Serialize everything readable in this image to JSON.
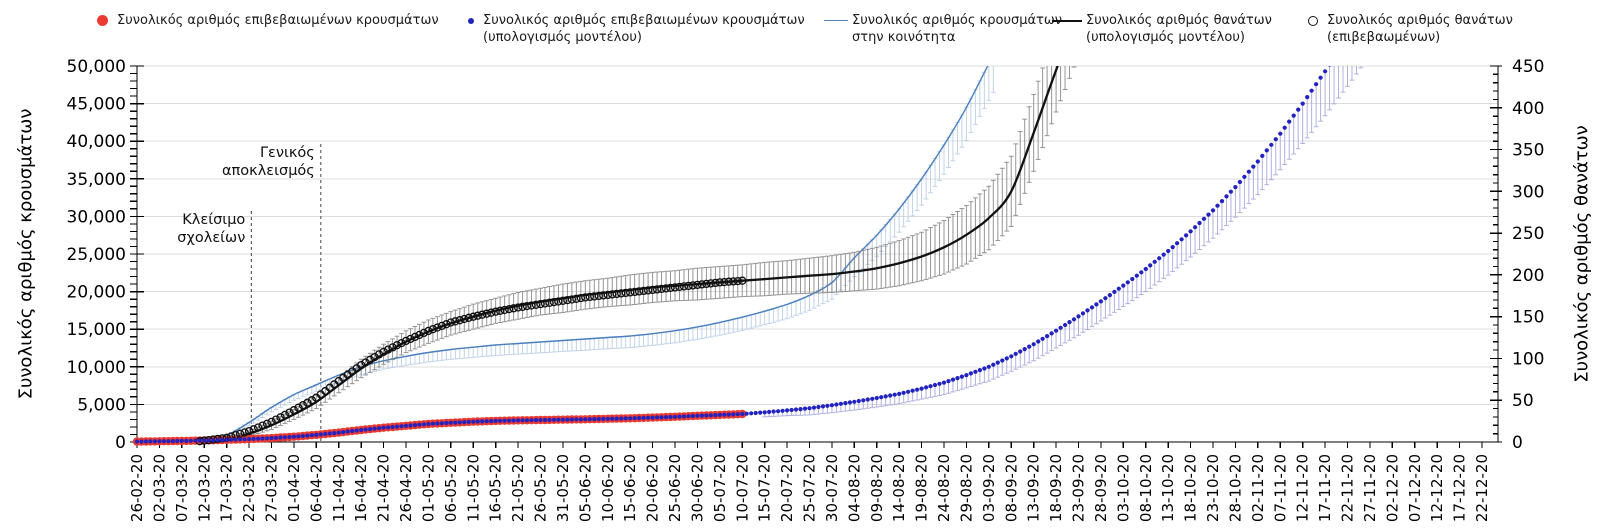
{
  "legend": {
    "items": [
      {
        "marker": "red-dot",
        "color": "#ea3b32",
        "lines": [
          "Συνολικός αριθμός επιβεβαιωμένων κρουσμάτων"
        ]
      },
      {
        "marker": "blue-dot",
        "color": "#2222c0",
        "lines": [
          "Συνολικός αριθμός επιβεβαιωμένων κρουσμάτων",
          "(υπολογισμός μοντέλου)"
        ]
      },
      {
        "marker": "blue-line",
        "color": "#4a7ebd",
        "lines": [
          "Συνολικός αριθμός κρουσμάτων",
          "στην κοινότητα"
        ]
      },
      {
        "marker": "black-line",
        "color": "#111111",
        "lines": [
          "Συνολικός αριθμός θανάτων",
          "(υπολογισμός μοντέλου)"
        ]
      },
      {
        "marker": "open-circle",
        "color": "#111111",
        "lines": [
          "Συνολικός αριθμός θανάτων",
          "(επιβεβαωμένων)"
        ]
      }
    ]
  },
  "chart_data": {
    "type": "mixed",
    "grid": "horizontal",
    "grid_color": "#dcdcdc",
    "background": "#ffffff",
    "left_axis": {
      "title": "Συνολικός αριθμός κρουσμάτων",
      "min": 0,
      "max": 50000,
      "major_step": 5000,
      "minor_step": 1000,
      "tick_labels": [
        "0",
        "5,000",
        "10,000",
        "15,000",
        "20,000",
        "25,000",
        "30,000",
        "35,000",
        "40,000",
        "45,000",
        "50,000"
      ]
    },
    "right_axis": {
      "title": "Συνολικός αριθμός θανάτων",
      "min": 0,
      "max": 450,
      "major_step": 50,
      "minor_step": 10,
      "tick_labels": [
        "0",
        "50",
        "100",
        "150",
        "200",
        "250",
        "300",
        "350",
        "400",
        "450"
      ]
    },
    "x_axis": {
      "step_days": 5,
      "tick_labels": [
        "26-02-20",
        "02-03-20",
        "07-03-20",
        "12-03-20",
        "17-03-20",
        "22-03-20",
        "27-03-20",
        "01-04-20",
        "06-04-20",
        "11-04-20",
        "16-04-20",
        "21-04-20",
        "26-04-20",
        "01-05-20",
        "06-05-20",
        "11-05-20",
        "16-05-20",
        "21-05-20",
        "26-05-20",
        "31-05-20",
        "05-06-20",
        "10-06-20",
        "15-06-20",
        "20-06-20",
        "25-06-20",
        "30-06-20",
        "05-07-20",
        "10-07-20",
        "15-07-20",
        "20-07-20",
        "25-07-20",
        "30-07-20",
        "04-08-20",
        "09-08-20",
        "14-08-20",
        "19-08-20",
        "24-08-20",
        "29-08-20",
        "03-09-20",
        "08-09-20",
        "13-09-20",
        "18-09-20",
        "23-09-20",
        "28-09-20",
        "03-10-20",
        "08-10-20",
        "13-10-20",
        "18-10-20",
        "23-10-20",
        "28-10-20",
        "02-11-20",
        "07-11-20",
        "12-11-20",
        "17-11-20",
        "22-11-20",
        "27-11-20",
        "02-12-20",
        "07-12-20",
        "12-12-20",
        "17-12-20",
        "22-12-20"
      ]
    },
    "annotations": [
      {
        "label_lines": [
          "Κλείσιμο",
          "σχολείων"
        ],
        "day": 25.5,
        "line_top_y": 211
      },
      {
        "label_lines": [
          "Γενικός",
          "αποκλεισμός"
        ],
        "day": 41,
        "line_top_y": 144
      }
    ],
    "series": [
      {
        "id": "cases_community",
        "name": "Συνολικός αριθμός κρουσμάτων στην κοινότητα",
        "type": "line",
        "axis": "left",
        "color": "#4a7ebd",
        "line_width": 1.4,
        "err_color": "#b6cbe5",
        "err_direction": "down",
        "points": [
          [
            0,
            0,
            0
          ],
          [
            5,
            30,
            0
          ],
          [
            10,
            80,
            100
          ],
          [
            15,
            250,
            200
          ],
          [
            20,
            900,
            300
          ],
          [
            25,
            2600,
            450
          ],
          [
            30,
            4600,
            600
          ],
          [
            35,
            6300,
            750
          ],
          [
            40,
            7600,
            850
          ],
          [
            45,
            8900,
            950
          ],
          [
            50,
            10000,
            1050
          ],
          [
            55,
            10800,
            1100
          ],
          [
            60,
            11400,
            1200
          ],
          [
            65,
            11900,
            1250
          ],
          [
            70,
            12300,
            1300
          ],
          [
            75,
            12600,
            1350
          ],
          [
            80,
            12900,
            1400
          ],
          [
            85,
            13100,
            1400
          ],
          [
            90,
            13300,
            1450
          ],
          [
            95,
            13500,
            1450
          ],
          [
            100,
            13700,
            1500
          ],
          [
            105,
            13900,
            1500
          ],
          [
            110,
            14100,
            1550
          ],
          [
            115,
            14400,
            1550
          ],
          [
            120,
            14800,
            1600
          ],
          [
            125,
            15300,
            1650
          ],
          [
            130,
            15900,
            1700
          ],
          [
            135,
            16600,
            1750
          ],
          [
            140,
            17400,
            1800
          ],
          [
            145,
            18300,
            1900
          ],
          [
            150,
            19500,
            2000
          ],
          [
            155,
            21200,
            2200
          ],
          [
            160,
            24500,
            2500
          ],
          [
            165,
            27500,
            2800
          ],
          [
            170,
            31000,
            3100
          ],
          [
            175,
            35000,
            3500
          ],
          [
            180,
            39500,
            3900
          ],
          [
            185,
            44500,
            4400
          ],
          [
            191,
            51500,
            5000
          ]
        ]
      },
      {
        "id": "deaths_model",
        "name": "Συνολικός αριθμός θανάτων (υπολογισμός μοντέλου)",
        "type": "line",
        "axis": "right",
        "color": "#111111",
        "line_width": 2.3,
        "err_color": "#828282",
        "err_direction": "sym",
        "points": [
          [
            0,
            0,
            0
          ],
          [
            10,
            0,
            0
          ],
          [
            15,
            1,
            0
          ],
          [
            20,
            4,
            2
          ],
          [
            25,
            10,
            3
          ],
          [
            30,
            20,
            5
          ],
          [
            35,
            33,
            6
          ],
          [
            40,
            48,
            8
          ],
          [
            45,
            68,
            9
          ],
          [
            50,
            88,
            11
          ],
          [
            55,
            105,
            12
          ],
          [
            60,
            120,
            13
          ],
          [
            65,
            132,
            14
          ],
          [
            70,
            142,
            14
          ],
          [
            75,
            150,
            15
          ],
          [
            80,
            157,
            15
          ],
          [
            85,
            163,
            16
          ],
          [
            90,
            168,
            16
          ],
          [
            95,
            172,
            17
          ],
          [
            100,
            176,
            17
          ],
          [
            105,
            179,
            17
          ],
          [
            110,
            182,
            18
          ],
          [
            115,
            185,
            18
          ],
          [
            120,
            187,
            18
          ],
          [
            125,
            189,
            19
          ],
          [
            130,
            191,
            19
          ],
          [
            135,
            193,
            19
          ],
          [
            140,
            195,
            20
          ],
          [
            145,
            197,
            20
          ],
          [
            150,
            199,
            21
          ],
          [
            155,
            201,
            22
          ],
          [
            160,
            204,
            23
          ],
          [
            165,
            208,
            25
          ],
          [
            170,
            214,
            27
          ],
          [
            175,
            222,
            29
          ],
          [
            180,
            233,
            32
          ],
          [
            185,
            248,
            35
          ],
          [
            190,
            268,
            38
          ],
          [
            195,
            300,
            42
          ],
          [
            200,
            370,
            46
          ],
          [
            205,
            445,
            50
          ],
          [
            212,
            545,
            56
          ]
        ]
      },
      {
        "id": "cases_confirmed",
        "name": "Συνολικός αριθμός επιβεβαιωμένων κρουσμάτων",
        "type": "dots",
        "axis": "left",
        "color": "#ea3b32",
        "marker_r": 4.2,
        "points": [
          [
            0,
            50
          ],
          [
            5,
            90
          ],
          [
            10,
            140
          ],
          [
            15,
            200
          ],
          [
            20,
            280
          ],
          [
            25,
            380
          ],
          [
            30,
            520
          ],
          [
            35,
            700
          ],
          [
            40,
            950
          ],
          [
            45,
            1250
          ],
          [
            50,
            1600
          ],
          [
            55,
            1900
          ],
          [
            60,
            2150
          ],
          [
            65,
            2400
          ],
          [
            70,
            2550
          ],
          [
            75,
            2700
          ],
          [
            80,
            2800
          ],
          [
            85,
            2870
          ],
          [
            90,
            2920
          ],
          [
            95,
            2970
          ],
          [
            100,
            3020
          ],
          [
            105,
            3080
          ],
          [
            110,
            3150
          ],
          [
            115,
            3250
          ],
          [
            120,
            3350
          ],
          [
            125,
            3480
          ],
          [
            130,
            3600
          ],
          [
            135,
            3720
          ]
        ]
      },
      {
        "id": "deaths_confirmed",
        "name": "Συνολικός αριθμός θανάτων (επιβεβαωμένων)",
        "type": "circles",
        "axis": "right",
        "color": "#111111",
        "marker_r": 3.5,
        "stroke_width": 1.3,
        "points": [
          [
            14,
            1
          ],
          [
            20,
            5
          ],
          [
            25,
            13
          ],
          [
            30,
            24
          ],
          [
            35,
            38
          ],
          [
            40,
            53
          ],
          [
            45,
            73
          ],
          [
            50,
            92
          ],
          [
            55,
            108
          ],
          [
            60,
            121
          ],
          [
            65,
            133
          ],
          [
            70,
            143
          ],
          [
            75,
            150
          ],
          [
            80,
            156
          ],
          [
            85,
            161
          ],
          [
            90,
            165
          ],
          [
            95,
            169
          ],
          [
            100,
            173
          ],
          [
            105,
            176
          ],
          [
            110,
            179
          ],
          [
            115,
            182
          ],
          [
            120,
            185
          ],
          [
            125,
            188
          ],
          [
            130,
            191
          ],
          [
            135,
            193
          ]
        ]
      },
      {
        "id": "cases_model",
        "name": "Συνολικός αριθμός επιβεβαιωμένων κρουσμάτων (υπολογισμός μοντέλου)",
        "type": "dots",
        "axis": "left",
        "color": "#2222c0",
        "marker_r": 2.1,
        "err_color": "#a3a3dc",
        "err_direction": "down",
        "points": [
          [
            0,
            50,
            0
          ],
          [
            5,
            90,
            0
          ],
          [
            10,
            140,
            0
          ],
          [
            15,
            200,
            0
          ],
          [
            20,
            280,
            0
          ],
          [
            25,
            380,
            0
          ],
          [
            30,
            520,
            0
          ],
          [
            35,
            700,
            0
          ],
          [
            40,
            950,
            0
          ],
          [
            45,
            1250,
            0
          ],
          [
            50,
            1600,
            0
          ],
          [
            55,
            1900,
            0
          ],
          [
            60,
            2150,
            0
          ],
          [
            65,
            2400,
            0
          ],
          [
            70,
            2550,
            0
          ],
          [
            75,
            2700,
            0
          ],
          [
            80,
            2800,
            0
          ],
          [
            85,
            2870,
            0
          ],
          [
            90,
            2920,
            0
          ],
          [
            95,
            2970,
            0
          ],
          [
            100,
            3020,
            0
          ],
          [
            105,
            3080,
            0
          ],
          [
            110,
            3150,
            0
          ],
          [
            115,
            3250,
            0
          ],
          [
            120,
            3350,
            0
          ],
          [
            125,
            3480,
            0
          ],
          [
            130,
            3600,
            0
          ],
          [
            135,
            3720,
            0
          ],
          [
            140,
            3950,
            600
          ],
          [
            145,
            4200,
            700
          ],
          [
            150,
            4500,
            900
          ],
          [
            155,
            4900,
            1000
          ],
          [
            160,
            5350,
            1100
          ],
          [
            165,
            5850,
            1200
          ],
          [
            170,
            6400,
            1300
          ],
          [
            175,
            7100,
            1400
          ],
          [
            180,
            7900,
            1600
          ],
          [
            185,
            8900,
            1700
          ],
          [
            190,
            10000,
            1900
          ],
          [
            195,
            11400,
            2000
          ],
          [
            200,
            13000,
            2200
          ],
          [
            205,
            14800,
            2300
          ],
          [
            210,
            16700,
            2500
          ],
          [
            215,
            18700,
            2600
          ],
          [
            220,
            20800,
            2800
          ],
          [
            225,
            23000,
            3000
          ],
          [
            230,
            25400,
            3200
          ],
          [
            235,
            28000,
            3400
          ],
          [
            240,
            30800,
            3700
          ],
          [
            245,
            33900,
            4000
          ],
          [
            250,
            37300,
            4400
          ],
          [
            255,
            41000,
            4800
          ],
          [
            260,
            45000,
            5300
          ],
          [
            265,
            49300,
            5900
          ],
          [
            270,
            53800,
            6500
          ],
          [
            275,
            58600,
            7200
          ]
        ]
      }
    ]
  }
}
